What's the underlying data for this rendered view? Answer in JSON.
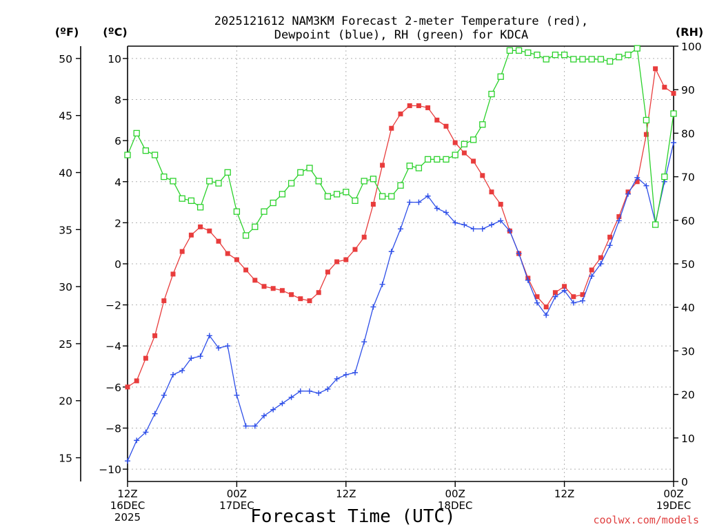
{
  "chart_data": {
    "type": "line",
    "title_line1": "2025121612 NAM3KM Forecast 2-meter Temperature (red),",
    "title_line2": "Dewpoint (blue), RH (green) for KDCA",
    "units": {
      "fahrenheit": "(ºF)",
      "celsius": "(ºC)",
      "rh": "(RH)"
    },
    "xlabel": "Forecast Time (UTC)",
    "credit": "coolwx.com/models",
    "x_range_hours": [
      0,
      60
    ],
    "celsius_axis": {
      "range": [
        -10.6,
        10.6
      ],
      "ticks": [
        "−10",
        "−8",
        "−6",
        "−4",
        "−2",
        "0",
        "2",
        "4",
        "6",
        "8",
        "10"
      ]
    },
    "fahrenheit_axis": {
      "ticks": [
        "15",
        "20",
        "25",
        "30",
        "35",
        "40",
        "45",
        "50"
      ]
    },
    "rh_axis": {
      "range": [
        0,
        100
      ],
      "ticks": [
        "0",
        "10",
        "20",
        "30",
        "40",
        "50",
        "60",
        "70",
        "80",
        "90",
        "100"
      ]
    },
    "x_ticks": [
      {
        "hour": 0,
        "l1": "12Z",
        "l2": "16DEC",
        "l3": "2025"
      },
      {
        "hour": 12,
        "l1": "00Z",
        "l2": "17DEC"
      },
      {
        "hour": 24,
        "l1": "12Z"
      },
      {
        "hour": 36,
        "l1": "00Z",
        "l2": "18DEC"
      },
      {
        "hour": 48,
        "l1": "12Z"
      },
      {
        "hour": 60,
        "l1": "00Z",
        "l2": "19DEC"
      }
    ],
    "series": [
      {
        "name": "2-meter Temperature (ºC)",
        "color": "#e83c3c",
        "marker": "filled-square",
        "axis": "celsius",
        "points": [
          [
            0,
            -6.0
          ],
          [
            1,
            -5.7
          ],
          [
            2,
            -4.6
          ],
          [
            3,
            -3.5
          ],
          [
            4,
            -1.8
          ],
          [
            5,
            -0.5
          ],
          [
            6,
            0.6
          ],
          [
            7,
            1.4
          ],
          [
            8,
            1.8
          ],
          [
            9,
            1.6
          ],
          [
            10,
            1.1
          ],
          [
            11,
            0.5
          ],
          [
            12,
            0.2
          ],
          [
            13,
            -0.3
          ],
          [
            14,
            -0.8
          ],
          [
            15,
            -1.1
          ],
          [
            16,
            -1.2
          ],
          [
            17,
            -1.3
          ],
          [
            18,
            -1.5
          ],
          [
            19,
            -1.7
          ],
          [
            20,
            -1.8
          ],
          [
            21,
            -1.4
          ],
          [
            22,
            -0.4
          ],
          [
            23,
            0.1
          ],
          [
            24,
            0.2
          ],
          [
            25,
            0.7
          ],
          [
            26,
            1.3
          ],
          [
            27,
            2.9
          ],
          [
            28,
            4.8
          ],
          [
            29,
            6.6
          ],
          [
            30,
            7.3
          ],
          [
            31,
            7.7
          ],
          [
            32,
            7.7
          ],
          [
            33,
            7.6
          ],
          [
            34,
            7.0
          ],
          [
            35,
            6.7
          ],
          [
            36,
            5.9
          ],
          [
            37,
            5.4
          ],
          [
            38,
            5.0
          ],
          [
            39,
            4.3
          ],
          [
            40,
            3.5
          ],
          [
            41,
            2.9
          ],
          [
            42,
            1.6
          ],
          [
            43,
            0.5
          ],
          [
            44,
            -0.7
          ],
          [
            45,
            -1.6
          ],
          [
            46,
            -2.1
          ],
          [
            47,
            -1.4
          ],
          [
            48,
            -1.1
          ],
          [
            49,
            -1.6
          ],
          [
            50,
            -1.5
          ],
          [
            51,
            -0.3
          ],
          [
            52,
            0.3
          ],
          [
            53,
            1.3
          ],
          [
            54,
            2.3
          ],
          [
            55,
            3.5
          ],
          [
            56,
            4.0
          ],
          [
            57,
            6.3
          ],
          [
            58,
            9.5
          ],
          [
            59,
            8.6
          ],
          [
            60,
            8.3
          ]
        ]
      },
      {
        "name": "Dewpoint (ºC)",
        "color": "#2d4ee8",
        "marker": "plus",
        "axis": "celsius",
        "points": [
          [
            0,
            -9.6
          ],
          [
            1,
            -8.6
          ],
          [
            2,
            -8.2
          ],
          [
            3,
            -7.3
          ],
          [
            4,
            -6.4
          ],
          [
            5,
            -5.4
          ],
          [
            6,
            -5.2
          ],
          [
            7,
            -4.6
          ],
          [
            8,
            -4.5
          ],
          [
            9,
            -3.5
          ],
          [
            10,
            -4.1
          ],
          [
            11,
            -4.0
          ],
          [
            12,
            -6.4
          ],
          [
            13,
            -7.9
          ],
          [
            14,
            -7.9
          ],
          [
            15,
            -7.4
          ],
          [
            16,
            -7.1
          ],
          [
            17,
            -6.8
          ],
          [
            18,
            -6.5
          ],
          [
            19,
            -6.2
          ],
          [
            20,
            -6.2
          ],
          [
            21,
            -6.3
          ],
          [
            22,
            -6.1
          ],
          [
            23,
            -5.6
          ],
          [
            24,
            -5.4
          ],
          [
            25,
            -5.3
          ],
          [
            26,
            -3.8
          ],
          [
            27,
            -2.1
          ],
          [
            28,
            -1.0
          ],
          [
            29,
            0.6
          ],
          [
            30,
            1.7
          ],
          [
            31,
            3.0
          ],
          [
            32,
            3.0
          ],
          [
            33,
            3.3
          ],
          [
            34,
            2.7
          ],
          [
            35,
            2.5
          ],
          [
            36,
            2.0
          ],
          [
            37,
            1.9
          ],
          [
            38,
            1.7
          ],
          [
            39,
            1.7
          ],
          [
            40,
            1.9
          ],
          [
            41,
            2.1
          ],
          [
            42,
            1.6
          ],
          [
            43,
            0.5
          ],
          [
            44,
            -0.8
          ],
          [
            45,
            -1.9
          ],
          [
            46,
            -2.5
          ],
          [
            47,
            -1.6
          ],
          [
            48,
            -1.3
          ],
          [
            49,
            -1.9
          ],
          [
            50,
            -1.8
          ],
          [
            51,
            -0.6
          ],
          [
            52,
            0.0
          ],
          [
            53,
            0.9
          ],
          [
            54,
            2.1
          ],
          [
            55,
            3.4
          ],
          [
            56,
            4.2
          ],
          [
            57,
            3.8
          ],
          [
            58,
            2.0
          ],
          [
            59,
            4.0
          ],
          [
            60,
            5.9
          ]
        ]
      },
      {
        "name": "Relative Humidity (%)",
        "color": "#2ad12a",
        "marker": "open-square",
        "axis": "rh",
        "points": [
          [
            0,
            75
          ],
          [
            1,
            80
          ],
          [
            2,
            76
          ],
          [
            3,
            75
          ],
          [
            4,
            70
          ],
          [
            5,
            69
          ],
          [
            6,
            65
          ],
          [
            7,
            64.5
          ],
          [
            8,
            63
          ],
          [
            9,
            69
          ],
          [
            10,
            68.5
          ],
          [
            11,
            71
          ],
          [
            12,
            62
          ],
          [
            13,
            56.5
          ],
          [
            14,
            58.5
          ],
          [
            15,
            62
          ],
          [
            16,
            64
          ],
          [
            17,
            66
          ],
          [
            18,
            68.5
          ],
          [
            19,
            71
          ],
          [
            20,
            72
          ],
          [
            21,
            69
          ],
          [
            22,
            65.5
          ],
          [
            23,
            66
          ],
          [
            24,
            66.5
          ],
          [
            25,
            64.5
          ],
          [
            26,
            69
          ],
          [
            27,
            69.5
          ],
          [
            28,
            65.5
          ],
          [
            29,
            65.5
          ],
          [
            30,
            68
          ],
          [
            31,
            72.5
          ],
          [
            32,
            72
          ],
          [
            33,
            74
          ],
          [
            34,
            74
          ],
          [
            35,
            74
          ],
          [
            36,
            75
          ],
          [
            37,
            77.5
          ],
          [
            38,
            78.5
          ],
          [
            39,
            82
          ],
          [
            40,
            89
          ],
          [
            41,
            93
          ],
          [
            42,
            99
          ],
          [
            43,
            99
          ],
          [
            44,
            98.5
          ],
          [
            45,
            98
          ],
          [
            46,
            97
          ],
          [
            47,
            98
          ],
          [
            48,
            98
          ],
          [
            49,
            97
          ],
          [
            50,
            97
          ],
          [
            51,
            97
          ],
          [
            52,
            97
          ],
          [
            53,
            96.5
          ],
          [
            54,
            97.5
          ],
          [
            55,
            98
          ],
          [
            56,
            99.5
          ],
          [
            57,
            83
          ],
          [
            58,
            59
          ],
          [
            59,
            70
          ],
          [
            60,
            84.5
          ]
        ]
      }
    ]
  }
}
